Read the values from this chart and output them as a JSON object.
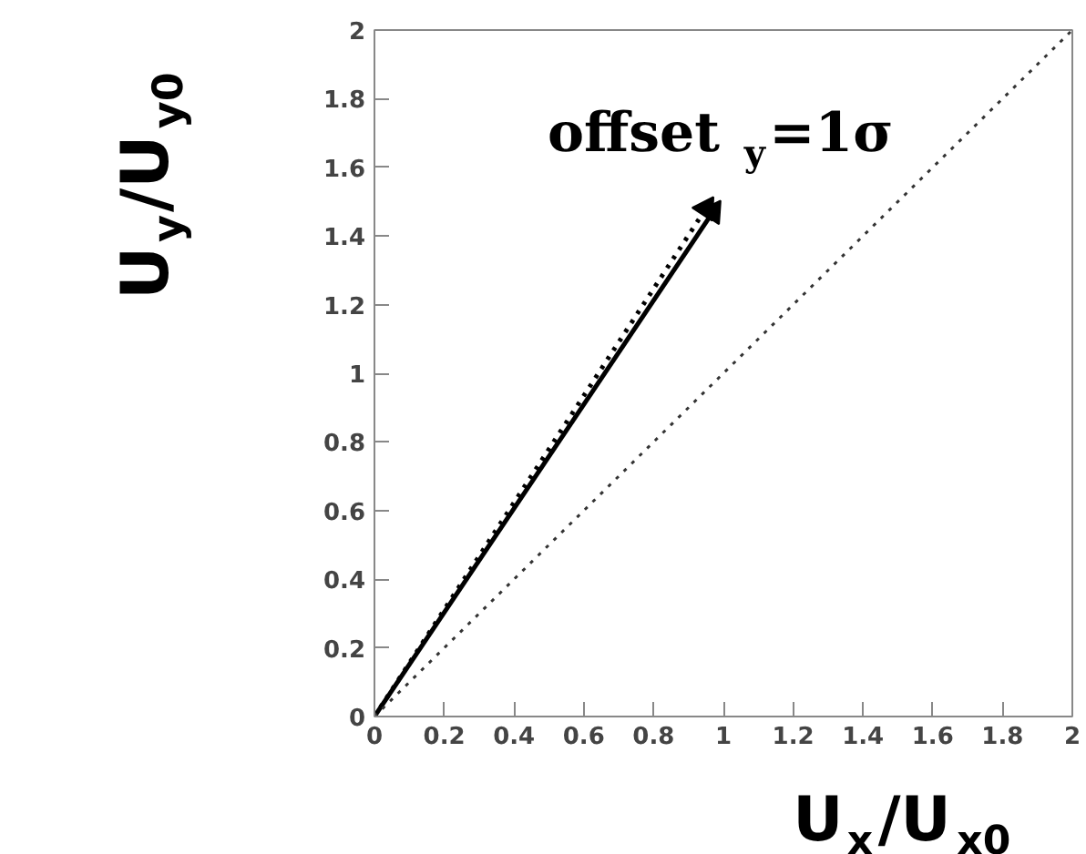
{
  "chart_data": {
    "type": "line",
    "title": "offset$_{y}$=1σ",
    "xlabel": "U$_{x}$/U$_{x0}$",
    "ylabel": "U$_{y}$/U$_{y0}$",
    "xlim": [
      0,
      2
    ],
    "ylim": [
      0,
      2
    ],
    "xticks": [
      0,
      0.2,
      0.4,
      0.6,
      0.8,
      1,
      1.2,
      1.4,
      1.6,
      1.8,
      2
    ],
    "yticks": [
      0,
      0.2,
      0.4,
      0.6,
      0.8,
      1,
      1.2,
      1.4,
      1.6,
      1.8,
      2
    ],
    "grid": false,
    "series": [
      {
        "color": "#000000",
        "line_style": "solid",
        "x": [
          0,
          0.97
        ],
        "values": [
          0,
          1.47
        ]
      },
      {
        "type": "scatter",
        "marker": "triangle",
        "color": "#000000",
        "x": [
          0.97
        ],
        "values": [
          1.47
        ]
      },
      {
        "color": "#000000",
        "line_style": "dotted",
        "x": [
          0,
          0.95
        ],
        "values": [
          0,
          1.48
        ]
      },
      {
        "type": "scatter",
        "marker": "triangle",
        "color": "#000000",
        "x": [
          0.95
        ],
        "values": [
          1.48
        ]
      },
      {
        "color": "#333333",
        "line_style": "dotted",
        "x": [
          0,
          2
        ],
        "values": [
          0,
          2
        ]
      }
    ]
  }
}
